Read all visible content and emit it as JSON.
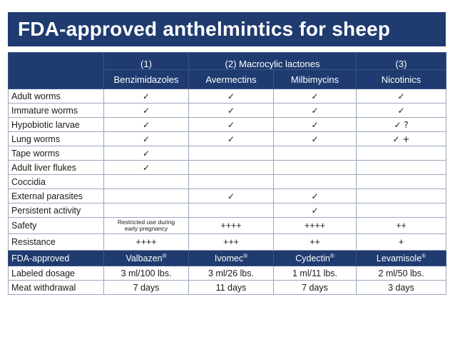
{
  "title": "FDA-approved anthelmintics for sheep",
  "header": {
    "group1": "(1)",
    "group1_name": "Benzimidazoles",
    "group2": "(2) Macrocylic lactones",
    "avermectins": "Avermectins",
    "milbimycins": "Milbimycins",
    "group3": "(3)",
    "group3_name": "Nicotinics"
  },
  "check_glyph": "✓",
  "rows": [
    {
      "label": "Adult worms",
      "cells": [
        "✓",
        "✓",
        "✓",
        "✓"
      ]
    },
    {
      "label": "Immature worms",
      "cells": [
        "✓",
        "✓",
        "✓",
        "✓"
      ]
    },
    {
      "label": "Hypobiotic larvae",
      "cells": [
        "✓",
        "✓",
        "✓",
        "✓ ?"
      ]
    },
    {
      "label": "Lung worms",
      "cells": [
        "✓",
        "✓",
        "✓",
        "✓ +"
      ]
    },
    {
      "label": "Tape worms",
      "cells": [
        "✓",
        "",
        "",
        ""
      ]
    },
    {
      "label": "Adult liver flukes",
      "cells": [
        "✓",
        "",
        "",
        ""
      ]
    },
    {
      "label": "Coccidia",
      "cells": [
        "",
        "",
        "",
        ""
      ]
    },
    {
      "label": "External parasites",
      "cells": [
        "",
        "✓",
        "✓",
        ""
      ]
    },
    {
      "label": "Persistent activity",
      "cells": [
        "",
        "",
        "✓",
        ""
      ]
    }
  ],
  "safety": {
    "label": "Safety",
    "benz_note_line1": "Restricted use during",
    "benz_note_line2": "early pregnancy",
    "avermectins": "++++",
    "milbimycins": "++++",
    "nicotinics": "++"
  },
  "resistance": {
    "label": "Resistance",
    "cells": [
      "++++",
      "+++",
      "++",
      "+"
    ]
  },
  "fda": {
    "label": "FDA-approved",
    "products": [
      "Valbazen",
      "Ivomec",
      "Cydectin",
      "Levamisole"
    ],
    "registered_mark": "®"
  },
  "dosage": {
    "label": "Labeled dosage",
    "cells": [
      "3 ml/100 lbs.",
      "3 ml/26 lbs.",
      "1 ml/11 lbs.",
      "2 ml/50 lbs."
    ]
  },
  "withdrawal": {
    "label": "Meat withdrawal",
    "cells": [
      "7 days",
      "11 days",
      "7 days",
      "3 days"
    ]
  },
  "colors": {
    "navy": "#1f3b6f",
    "grid": "#9aa7bd"
  }
}
